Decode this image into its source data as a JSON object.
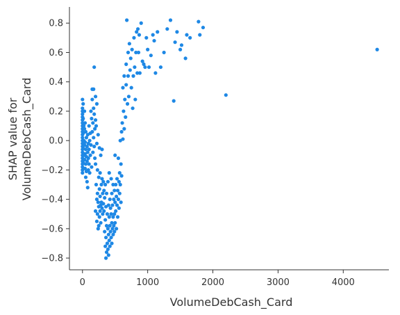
{
  "chart_data": {
    "type": "scatter",
    "title": "",
    "xlabel": "VolumeDebCash_Card",
    "ylabel_lines": [
      "SHAP value for",
      "VolumeDebCash_Card"
    ],
    "xlim": [
      -200,
      4700
    ],
    "ylim": [
      -0.88,
      0.91
    ],
    "xticks": [
      0,
      1000,
      2000,
      3000,
      4000
    ],
    "yticks": [
      -0.8,
      -0.6,
      -0.4,
      -0.2,
      0.0,
      0.2,
      0.4,
      0.6,
      0.8
    ],
    "grid": false,
    "point_color": "#1E88E5",
    "points": [
      [
        0,
        0.28
      ],
      [
        0,
        0.22
      ],
      [
        0,
        0.2
      ],
      [
        0,
        0.18
      ],
      [
        0,
        0.16
      ],
      [
        0,
        0.14
      ],
      [
        0,
        0.12
      ],
      [
        0,
        0.1
      ],
      [
        0,
        0.08
      ],
      [
        0,
        0.06
      ],
      [
        0,
        0.04
      ],
      [
        0,
        0.02
      ],
      [
        0,
        0.0
      ],
      [
        0,
        -0.02
      ],
      [
        0,
        -0.04
      ],
      [
        0,
        -0.06
      ],
      [
        0,
        -0.08
      ],
      [
        0,
        -0.1
      ],
      [
        0,
        -0.12
      ],
      [
        0,
        -0.14
      ],
      [
        0,
        -0.16
      ],
      [
        0,
        -0.18
      ],
      [
        0,
        -0.2
      ],
      [
        0,
        -0.22
      ],
      [
        10,
        0.25
      ],
      [
        10,
        0.15
      ],
      [
        10,
        0.05
      ],
      [
        10,
        -0.05
      ],
      [
        10,
        -0.15
      ],
      [
        20,
        0.1
      ],
      [
        20,
        0.0
      ],
      [
        20,
        -0.1
      ],
      [
        30,
        0.2
      ],
      [
        30,
        0.08
      ],
      [
        30,
        -0.03
      ],
      [
        30,
        -0.13
      ],
      [
        40,
        0.12
      ],
      [
        40,
        -0.01
      ],
      [
        40,
        -0.09
      ],
      [
        40,
        -0.19
      ],
      [
        50,
        0.06
      ],
      [
        50,
        -0.06
      ],
      [
        50,
        -0.16
      ],
      [
        50,
        -0.25
      ],
      [
        60,
        0.02
      ],
      [
        60,
        -0.11
      ],
      [
        60,
        -0.21
      ],
      [
        70,
        -0.04
      ],
      [
        70,
        -0.14
      ],
      [
        70,
        -0.28
      ],
      [
        80,
        0.04
      ],
      [
        80,
        -0.08
      ],
      [
        80,
        -0.32
      ],
      [
        90,
        -0.02
      ],
      [
        90,
        -0.12
      ],
      [
        90,
        -0.2
      ],
      [
        100,
        0.1
      ],
      [
        100,
        -0.06
      ],
      [
        100,
        -0.16
      ],
      [
        110,
        0.0
      ],
      [
        110,
        -0.22
      ],
      [
        120,
        0.05
      ],
      [
        120,
        -0.1
      ],
      [
        130,
        0.2
      ],
      [
        130,
        -0.03
      ],
      [
        140,
        0.15
      ],
      [
        140,
        -0.18
      ],
      [
        150,
        0.35
      ],
      [
        150,
        0.28
      ],
      [
        150,
        0.06
      ],
      [
        160,
        0.12
      ],
      [
        160,
        -0.08
      ],
      [
        170,
        0.35
      ],
      [
        170,
        0.22
      ],
      [
        170,
        0.02
      ],
      [
        180,
        0.5
      ],
      [
        180,
        0.18
      ],
      [
        180,
        -0.04
      ],
      [
        190,
        0.08
      ],
      [
        190,
        -0.12
      ],
      [
        200,
        0.3
      ],
      [
        200,
        0.14
      ],
      [
        200,
        -0.16
      ],
      [
        200,
        -0.48
      ],
      [
        210,
        0.1
      ],
      [
        210,
        -0.3
      ],
      [
        220,
        0.25
      ],
      [
        220,
        -0.02
      ],
      [
        220,
        -0.4
      ],
      [
        220,
        -0.55
      ],
      [
        230,
        -0.2
      ],
      [
        230,
        -0.36
      ],
      [
        230,
        -0.5
      ],
      [
        240,
        0.04
      ],
      [
        240,
        -0.42
      ],
      [
        240,
        -0.6
      ],
      [
        250,
        -0.25
      ],
      [
        250,
        -0.45
      ],
      [
        250,
        -0.58
      ],
      [
        260,
        -0.05
      ],
      [
        260,
        -0.33
      ],
      [
        260,
        -0.52
      ],
      [
        270,
        -0.22
      ],
      [
        270,
        -0.38
      ],
      [
        270,
        -0.48
      ],
      [
        280,
        -0.1
      ],
      [
        280,
        -0.44
      ],
      [
        280,
        -0.56
      ],
      [
        290,
        -0.3
      ],
      [
        290,
        -0.42
      ],
      [
        300,
        -0.06
      ],
      [
        300,
        -0.26
      ],
      [
        300,
        -0.46
      ],
      [
        310,
        -0.36
      ],
      [
        310,
        -0.5
      ],
      [
        320,
        -0.28
      ],
      [
        320,
        -0.43
      ],
      [
        330,
        -0.34
      ],
      [
        330,
        -0.48
      ],
      [
        340,
        -0.39
      ],
      [
        340,
        -0.62
      ],
      [
        350,
        -0.3
      ],
      [
        350,
        -0.54
      ],
      [
        350,
        -0.72
      ],
      [
        360,
        -0.45
      ],
      [
        360,
        -0.66
      ],
      [
        360,
        -0.8
      ],
      [
        370,
        -0.36
      ],
      [
        370,
        -0.58
      ],
      [
        370,
        -0.76
      ],
      [
        380,
        -0.5
      ],
      [
        380,
        -0.7
      ],
      [
        390,
        -0.28
      ],
      [
        390,
        -0.6
      ],
      [
        390,
        -0.74
      ],
      [
        400,
        -0.44
      ],
      [
        400,
        -0.64
      ],
      [
        400,
        -0.78
      ],
      [
        410,
        -0.22
      ],
      [
        410,
        -0.52
      ],
      [
        410,
        -0.68
      ],
      [
        420,
        -0.4
      ],
      [
        420,
        -0.58
      ],
      [
        420,
        -0.72
      ],
      [
        430,
        -0.46
      ],
      [
        430,
        -0.62
      ],
      [
        440,
        -0.26
      ],
      [
        440,
        -0.5
      ],
      [
        440,
        -0.66
      ],
      [
        450,
        -0.36
      ],
      [
        450,
        -0.56
      ],
      [
        450,
        -0.7
      ],
      [
        460,
        -0.44
      ],
      [
        460,
        -0.6
      ],
      [
        470,
        -0.3
      ],
      [
        470,
        -0.52
      ],
      [
        470,
        -0.64
      ],
      [
        480,
        -0.4
      ],
      [
        480,
        -0.58
      ],
      [
        490,
        -0.34
      ],
      [
        490,
        -0.5
      ],
      [
        490,
        -0.62
      ],
      [
        500,
        -0.1
      ],
      [
        500,
        -0.42
      ],
      [
        500,
        -0.56
      ],
      [
        510,
        -0.3
      ],
      [
        510,
        -0.48
      ],
      [
        520,
        -0.38
      ],
      [
        520,
        -0.6
      ],
      [
        530,
        -0.26
      ],
      [
        530,
        -0.44
      ],
      [
        540,
        -0.34
      ],
      [
        540,
        -0.52
      ],
      [
        550,
        -0.12
      ],
      [
        550,
        -0.4
      ],
      [
        560,
        -0.28
      ],
      [
        560,
        -0.46
      ],
      [
        570,
        -0.22
      ],
      [
        570,
        -0.36
      ],
      [
        580,
        0.0
      ],
      [
        580,
        -0.3
      ],
      [
        590,
        -0.16
      ],
      [
        590,
        -0.42
      ],
      [
        600,
        0.06
      ],
      [
        600,
        -0.24
      ],
      [
        610,
        0.12
      ],
      [
        620,
        0.36
      ],
      [
        620,
        0.01
      ],
      [
        630,
        0.2
      ],
      [
        640,
        0.44
      ],
      [
        640,
        0.08
      ],
      [
        650,
        0.28
      ],
      [
        660,
        0.16
      ],
      [
        670,
        0.52
      ],
      [
        670,
        0.38
      ],
      [
        680,
        0.82
      ],
      [
        690,
        0.25
      ],
      [
        700,
        0.6
      ],
      [
        700,
        0.44
      ],
      [
        710,
        0.3
      ],
      [
        720,
        0.66
      ],
      [
        730,
        0.48
      ],
      [
        740,
        0.56
      ],
      [
        750,
        0.36
      ],
      [
        760,
        0.62
      ],
      [
        770,
        0.22
      ],
      [
        780,
        0.44
      ],
      [
        790,
        0.7
      ],
      [
        800,
        0.5
      ],
      [
        810,
        0.28
      ],
      [
        820,
        0.6
      ],
      [
        830,
        0.74
      ],
      [
        840,
        0.46
      ],
      [
        850,
        0.76
      ],
      [
        860,
        0.6
      ],
      [
        870,
        0.72
      ],
      [
        880,
        0.46
      ],
      [
        900,
        0.8
      ],
      [
        920,
        0.54
      ],
      [
        940,
        0.52
      ],
      [
        960,
        0.5
      ],
      [
        980,
        0.7
      ],
      [
        1000,
        0.62
      ],
      [
        1020,
        0.5
      ],
      [
        1050,
        0.58
      ],
      [
        1080,
        0.72
      ],
      [
        1100,
        0.68
      ],
      [
        1120,
        0.46
      ],
      [
        1150,
        0.74
      ],
      [
        1200,
        0.5
      ],
      [
        1250,
        0.6
      ],
      [
        1300,
        0.76
      ],
      [
        1350,
        0.82
      ],
      [
        1400,
        0.27
      ],
      [
        1420,
        0.67
      ],
      [
        1450,
        0.74
      ],
      [
        1500,
        0.62
      ],
      [
        1520,
        0.65
      ],
      [
        1580,
        0.56
      ],
      [
        1600,
        0.72
      ],
      [
        1650,
        0.7
      ],
      [
        1780,
        0.81
      ],
      [
        1800,
        0.72
      ],
      [
        1850,
        0.77
      ],
      [
        2200,
        0.31
      ],
      [
        4520,
        0.62
      ]
    ]
  }
}
